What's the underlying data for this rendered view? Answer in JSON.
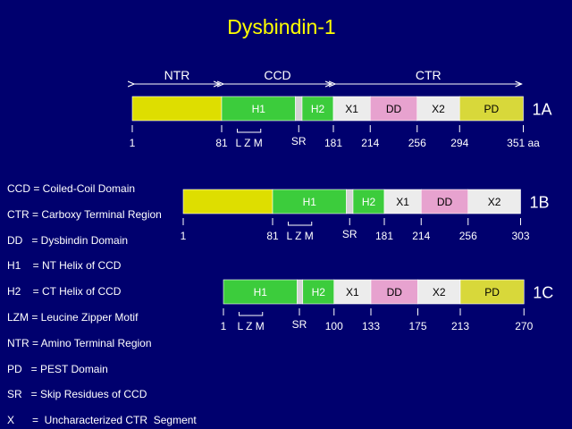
{
  "title": "Dysbindin-1",
  "colors": {
    "background": "#00006e",
    "title": "#ffff00",
    "text": "#ffffff",
    "ntr": "#dede00",
    "helix": "#3ccc3c",
    "sr": "#d4d4d4",
    "x": "#ececec",
    "dd": "#e7a2cf",
    "pd": "#d8d83a"
  },
  "regions": [
    {
      "label": "NTR",
      "from": 1,
      "to": 81
    },
    {
      "label": "CCD",
      "from": 81,
      "to": 181
    },
    {
      "label": "CTR",
      "from": 181,
      "to": 351
    }
  ],
  "isoforms": [
    {
      "name": "1A",
      "segments": [
        {
          "type": "ntr",
          "label": "",
          "from": 1,
          "to": 81
        },
        {
          "type": "helix",
          "label": "H1",
          "from": 81,
          "to": 147
        },
        {
          "type": "sr",
          "label": "",
          "from": 147,
          "to": 153
        },
        {
          "type": "helix",
          "label": "H2",
          "from": 153,
          "to": 181
        },
        {
          "type": "x",
          "label": "X1",
          "from": 181,
          "to": 214
        },
        {
          "type": "dd",
          "label": "DD",
          "from": 214,
          "to": 256
        },
        {
          "type": "x",
          "label": "X2",
          "from": 256,
          "to": 294
        },
        {
          "type": "pd",
          "label": "PD",
          "from": 294,
          "to": 351
        }
      ],
      "ticks": [
        {
          "pos": 1,
          "label": "1"
        },
        {
          "pos": 81,
          "label": "81"
        },
        {
          "pos": 181,
          "label": "181"
        },
        {
          "pos": 214,
          "label": "214"
        },
        {
          "pos": 256,
          "label": "256"
        },
        {
          "pos": 294,
          "label": "294"
        },
        {
          "pos": 351,
          "label": "351 aa"
        }
      ],
      "lzm": {
        "from": 95,
        "to": 116,
        "label": "L Z M"
      },
      "sr": {
        "pos": 150,
        "label": "SR"
      }
    },
    {
      "name": "1B",
      "segments": [
        {
          "type": "ntr",
          "label": "",
          "from": 1,
          "to": 81
        },
        {
          "type": "helix",
          "label": "H1",
          "from": 81,
          "to": 147
        },
        {
          "type": "sr",
          "label": "",
          "from": 147,
          "to": 153
        },
        {
          "type": "helix",
          "label": "H2",
          "from": 153,
          "to": 181
        },
        {
          "type": "x",
          "label": "X1",
          "from": 181,
          "to": 214
        },
        {
          "type": "dd",
          "label": "DD",
          "from": 214,
          "to": 256
        },
        {
          "type": "x",
          "label": "X2",
          "from": 256,
          "to": 303
        }
      ],
      "ticks": [
        {
          "pos": 1,
          "label": "1"
        },
        {
          "pos": 81,
          "label": "81"
        },
        {
          "pos": 181,
          "label": "181"
        },
        {
          "pos": 214,
          "label": "214"
        },
        {
          "pos": 256,
          "label": "256"
        },
        {
          "pos": 303,
          "label": "303"
        }
      ],
      "lzm": {
        "from": 95,
        "to": 116,
        "label": "L Z M"
      },
      "sr": {
        "pos": 150,
        "label": "SR"
      }
    },
    {
      "name": "1C",
      "segments": [
        {
          "type": "helix",
          "label": "H1",
          "from": 1,
          "to": 67
        },
        {
          "type": "sr",
          "label": "",
          "from": 67,
          "to": 72
        },
        {
          "type": "helix",
          "label": "H2",
          "from": 72,
          "to": 100
        },
        {
          "type": "x",
          "label": "X1",
          "from": 100,
          "to": 133
        },
        {
          "type": "dd",
          "label": "DD",
          "from": 133,
          "to": 175
        },
        {
          "type": "x",
          "label": "X2",
          "from": 175,
          "to": 213
        },
        {
          "type": "pd",
          "label": "PD",
          "from": 213,
          "to": 270
        }
      ],
      "ticks": [
        {
          "pos": 1,
          "label": "1"
        },
        {
          "pos": 100,
          "label": "100"
        },
        {
          "pos": 133,
          "label": "133"
        },
        {
          "pos": 175,
          "label": "175"
        },
        {
          "pos": 213,
          "label": "213"
        },
        {
          "pos": 270,
          "label": "270"
        }
      ],
      "lzm": {
        "from": 15,
        "to": 36,
        "label": "L Z M"
      },
      "sr": {
        "pos": 69,
        "label": "SR"
      }
    }
  ],
  "legend": [
    "CCD = Coiled-Coil Domain",
    "CTR = Carboxy Terminal Region",
    "DD   = Dysbindin Domain",
    "H1    = NT Helix of CCD",
    "H2    = CT Helix of CCD",
    "LZM = Leucine Zipper Motif",
    "NTR = Amino Terminal Region",
    "PD   = PEST Domain",
    "SR   = Skip Residues of CCD",
    "X      =  Uncharacterized CTR  Segment"
  ]
}
